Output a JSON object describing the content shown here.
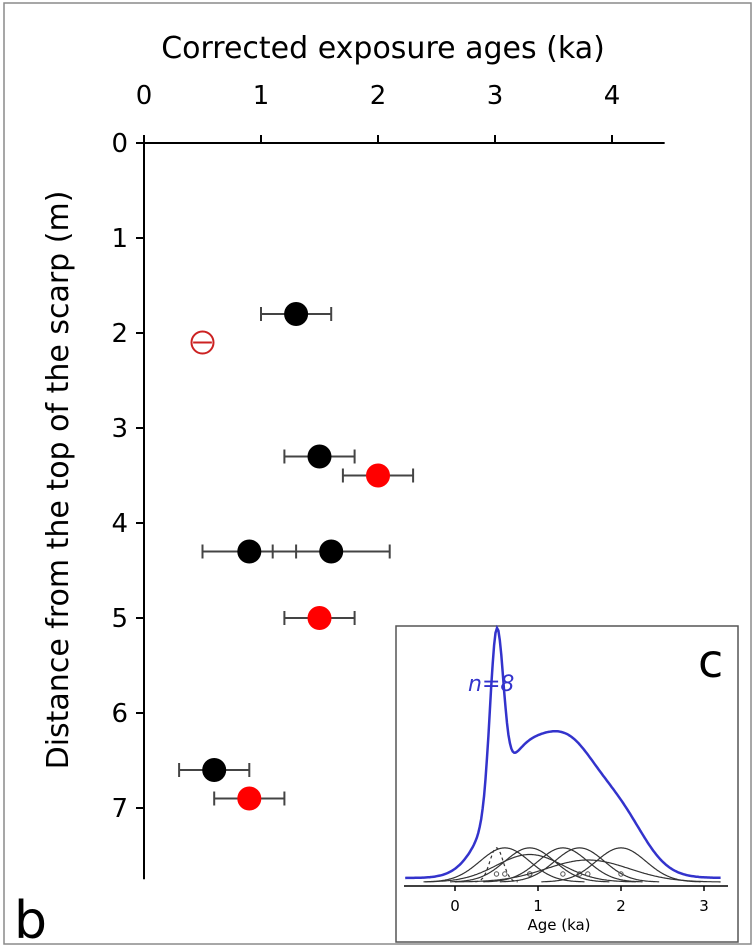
{
  "figure": {
    "panel_label": "b",
    "inset_panel_label": "c"
  },
  "chart_data": [
    {
      "type": "scatter",
      "title": "",
      "xlabel": "Corrected exposure ages (ka)",
      "ylabel": "Distance from the top of the scarp (m)",
      "xlim": [
        0,
        4.5
      ],
      "ylim": [
        0,
        7.7
      ],
      "x_axis_position": "top",
      "y_axis_inverted": true,
      "x_ticks": [
        "0",
        "1",
        "2",
        "3",
        "4"
      ],
      "y_ticks": [
        "0",
        "1",
        "2",
        "3",
        "4",
        "5",
        "6",
        "7"
      ],
      "grid": false,
      "series": [
        {
          "color": "#000000",
          "marker": "filled-circle",
          "points": [
            {
              "x": 1.3,
              "y": 1.8,
              "xerr": 0.3
            },
            {
              "x": 1.5,
              "y": 3.3,
              "xerr": 0.3
            },
            {
              "x": 0.9,
              "y": 4.3,
              "xerr": 0.4
            },
            {
              "x": 1.6,
              "y": 4.3,
              "xerr": 0.5
            },
            {
              "x": 0.6,
              "y": 6.6,
              "xerr": 0.3
            }
          ]
        },
        {
          "color": "#ff0000",
          "marker": "filled-circle",
          "points": [
            {
              "x": 2.0,
              "y": 3.5,
              "xerr": 0.3
            },
            {
              "x": 1.5,
              "y": 5.0,
              "xerr": 0.3
            },
            {
              "x": 0.9,
              "y": 6.9,
              "xerr": 0.3
            }
          ]
        },
        {
          "color": "#cc2222",
          "marker": "open-circle-with-bar",
          "points": [
            {
              "x": 0.5,
              "y": 2.1,
              "xerr": 0.08
            }
          ]
        }
      ]
    },
    {
      "type": "line",
      "title": "",
      "xlabel": "Age (ka)",
      "ylabel": "",
      "xlim": [
        -0.6,
        3.2
      ],
      "x_ticks": [
        "0",
        "1",
        "2",
        "3"
      ],
      "annotation": "n=8",
      "summed_color": "#3333cc",
      "component_color": "#333333",
      "summed_peak": 1.0,
      "components": [
        {
          "mean": 0.6,
          "sd": 0.3,
          "dashed": false
        },
        {
          "mean": 0.9,
          "sd": 0.3,
          "dashed": false
        },
        {
          "mean": 0.9,
          "sd": 0.4,
          "dashed": false
        },
        {
          "mean": 1.3,
          "sd": 0.3,
          "dashed": false
        },
        {
          "mean": 1.5,
          "sd": 0.3,
          "dashed": false
        },
        {
          "mean": 1.6,
          "sd": 0.5,
          "dashed": false
        },
        {
          "mean": 2.0,
          "sd": 0.3,
          "dashed": false
        },
        {
          "mean": 0.5,
          "sd": 0.08,
          "dashed": true
        }
      ],
      "component_heights": [
        0.62,
        0.62,
        0.5,
        0.62,
        0.62,
        0.4,
        0.62,
        0.62
      ]
    }
  ]
}
